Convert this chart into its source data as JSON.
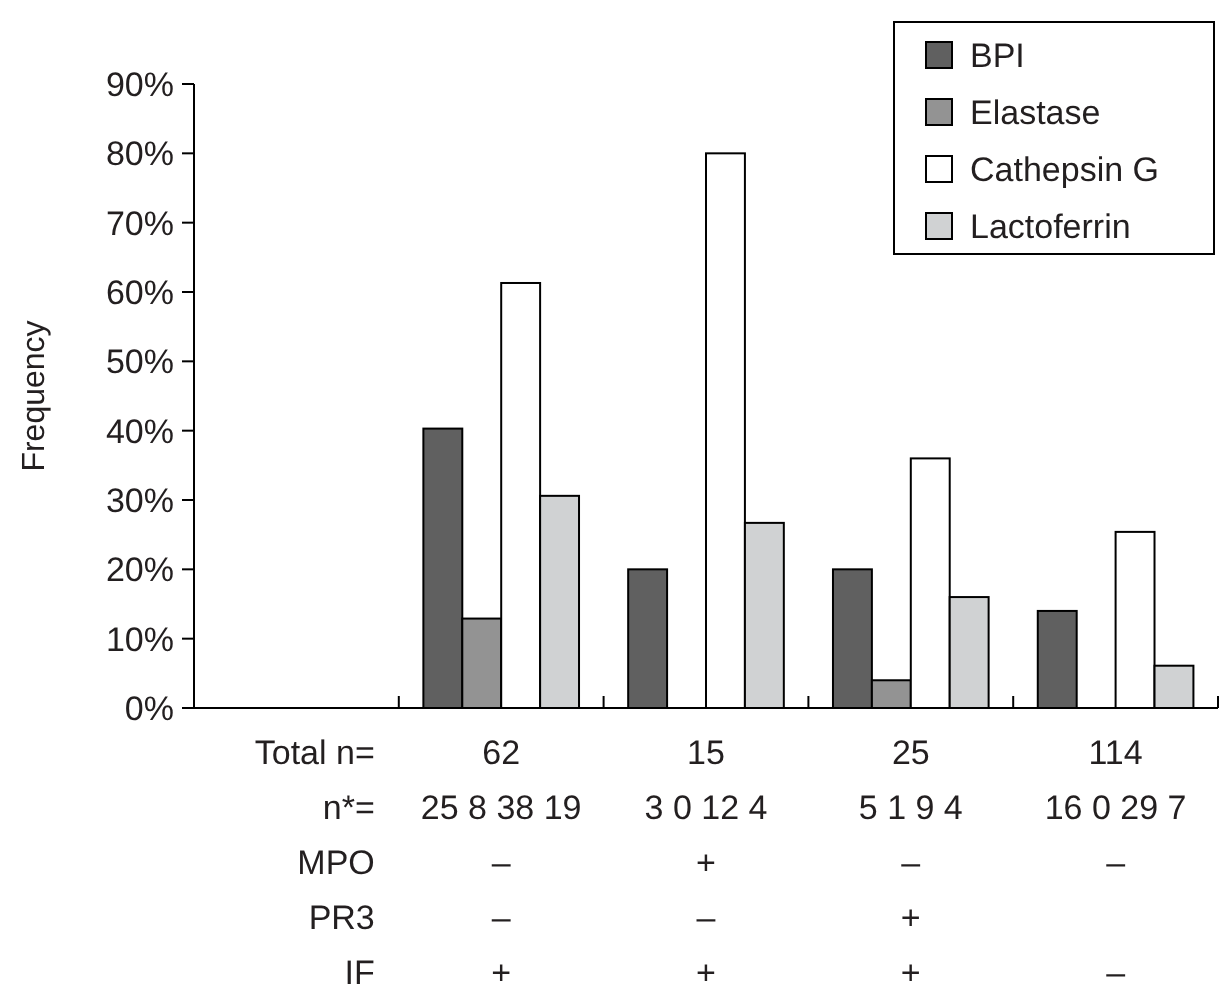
{
  "chart_data": {
    "type": "bar",
    "ylabel": "Frequency",
    "categories": [
      "Total n=\nn*=\nMPO\nPR3\nIF",
      "62\n25 8 38 19\n–\n–\n+",
      "15\n3 0 12 4\n+\n–\n+",
      "25\n5 1 9 4\n–\n+\n+",
      "114\n16 0 29 7\n–\n\n–"
    ],
    "series": [
      {
        "name": "BPI",
        "color": "#606060",
        "values": [
          null,
          40.3,
          20,
          20,
          14.0
        ]
      },
      {
        "name": "Elastase",
        "color": "#939393",
        "values": [
          null,
          12.9,
          0,
          4,
          0
        ]
      },
      {
        "name": "Cathepsin G",
        "color": "#ffffff",
        "values": [
          null,
          61.3,
          80,
          36,
          25.4
        ]
      },
      {
        "name": "Lactoferrin",
        "color": "#d0d2d3",
        "values": [
          null,
          30.6,
          26.7,
          16,
          6.1
        ]
      }
    ],
    "ylim": [
      0,
      90
    ],
    "yticks": [
      {
        "value": 0,
        "label": "0%"
      },
      {
        "value": 10,
        "label": "10%"
      },
      {
        "value": 20,
        "label": "20%"
      },
      {
        "value": 30,
        "label": "30%"
      },
      {
        "value": 40,
        "label": "40%"
      },
      {
        "value": 50,
        "label": "50%"
      },
      {
        "value": 60,
        "label": "60%"
      },
      {
        "value": 70,
        "label": "70%"
      },
      {
        "value": 80,
        "label": "80%"
      },
      {
        "value": 90,
        "label": "90%"
      }
    ],
    "legend": "top right"
  }
}
